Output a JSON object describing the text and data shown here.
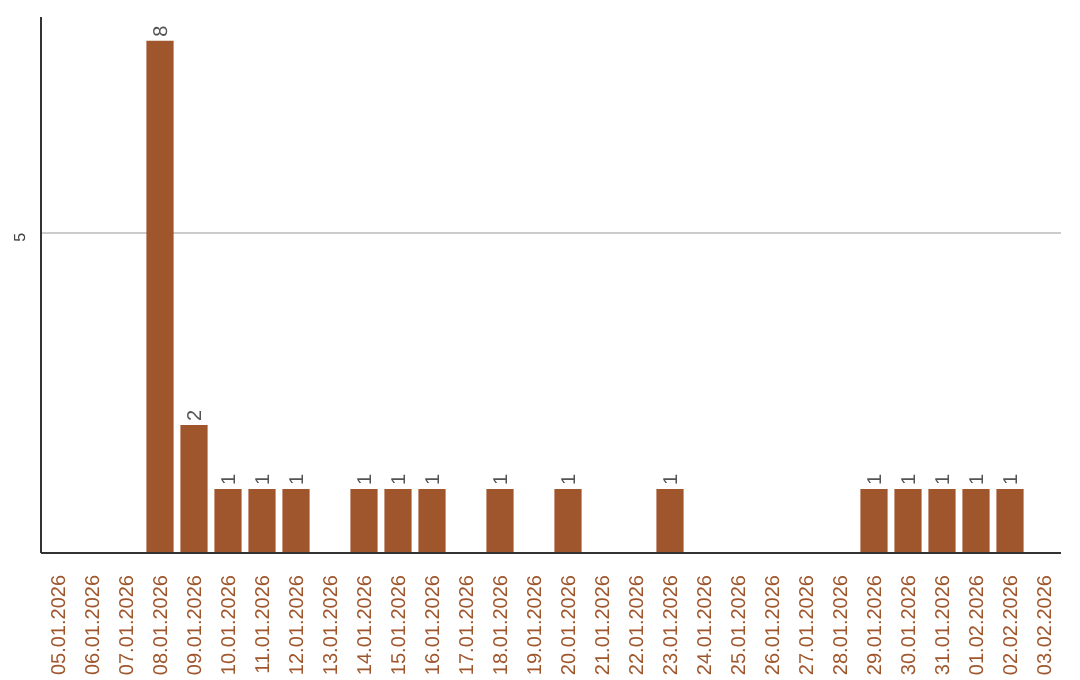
{
  "chart_data": {
    "type": "bar",
    "categories": [
      "05.01.2026",
      "06.01.2026",
      "07.01.2026",
      "08.01.2026",
      "09.01.2026",
      "10.01.2026",
      "11.01.2026",
      "12.01.2026",
      "13.01.2026",
      "14.01.2026",
      "15.01.2026",
      "16.01.2026",
      "17.01.2026",
      "18.01.2026",
      "19.01.2026",
      "20.01.2026",
      "21.01.2026",
      "22.01.2026",
      "23.01.2026",
      "24.01.2026",
      "25.01.2026",
      "26.01.2026",
      "27.01.2026",
      "28.01.2026",
      "29.01.2026",
      "30.01.2026",
      "31.01.2026",
      "01.02.2026",
      "02.02.2026",
      "03.02.2026"
    ],
    "values": [
      0,
      0,
      0,
      8,
      2,
      1,
      1,
      1,
      0,
      1,
      1,
      1,
      0,
      1,
      0,
      1,
      0,
      0,
      1,
      0,
      0,
      0,
      0,
      0,
      1,
      1,
      1,
      1,
      1,
      0
    ],
    "value_labels": [
      null,
      null,
      null,
      "8",
      "2",
      "1",
      "1",
      "1",
      null,
      "1",
      "1",
      "1",
      null,
      "1",
      null,
      "1",
      null,
      null,
      "1",
      null,
      null,
      null,
      null,
      null,
      "1",
      "1",
      "1",
      "1",
      "1",
      null
    ],
    "color": "#a0562c",
    "ylim": [
      0,
      8.37
    ],
    "yticks": [
      5
    ],
    "grid": "y"
  }
}
